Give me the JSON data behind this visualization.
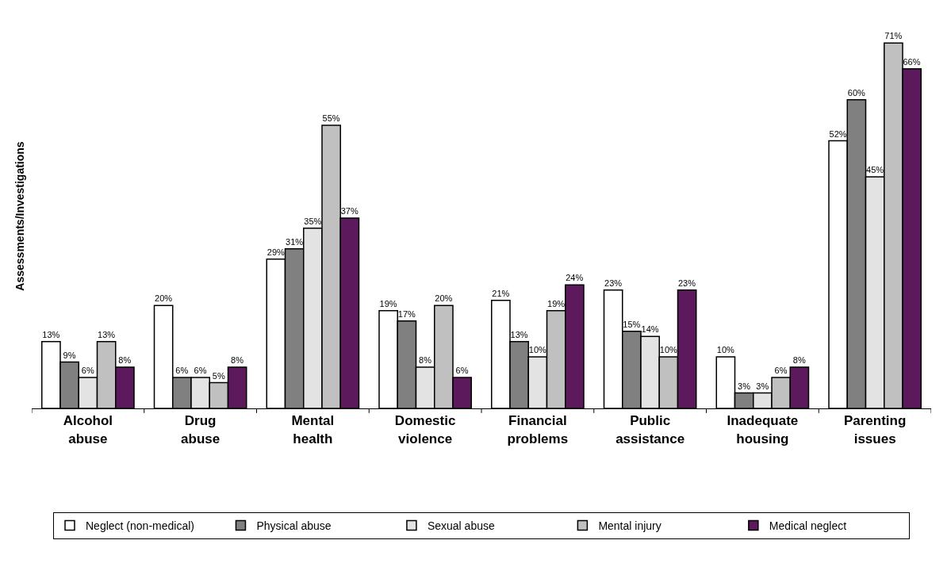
{
  "chart_data": {
    "type": "bar",
    "ylabel": "Assessments/Investigations",
    "categories": [
      "Alcohol abuse",
      "Drug abuse",
      "Mental health",
      "Domestic violence",
      "Financial problems",
      "Public assistance",
      "Inadequate housing",
      "Parenting issues"
    ],
    "series": [
      {
        "name": "Neglect (non-medical)",
        "color": "#ffffff",
        "values": [
          13,
          20,
          29,
          19,
          21,
          23,
          10,
          52
        ],
        "value_labels": [
          "13%",
          "20%",
          "29%",
          "19%",
          "21%",
          "23%",
          "10%",
          "52%"
        ]
      },
      {
        "name": "Physical abuse",
        "color": "#808080",
        "values": [
          9,
          6,
          31,
          17,
          13,
          15,
          3,
          60
        ],
        "value_labels": [
          "9%",
          "6%",
          "31%",
          "17%",
          "13%",
          "15%",
          "3%",
          "60%"
        ]
      },
      {
        "name": "Sexual abuse",
        "color": "#e3e3e3",
        "values": [
          6,
          6,
          35,
          8,
          10,
          14,
          3,
          45
        ],
        "value_labels": [
          "6%",
          "6%",
          "35%",
          "8%",
          "10%",
          "14%",
          "3%",
          "45%"
        ]
      },
      {
        "name": "Mental injury",
        "color": "#c0c0c0",
        "values": [
          13,
          5,
          55,
          20,
          19,
          10,
          6,
          71
        ],
        "value_labels": [
          "13%",
          "5%",
          "55%",
          "20%",
          "19%",
          "10%",
          "6%",
          "71%"
        ]
      },
      {
        "name": "Medical neglect",
        "color": "#5c1a5c",
        "values": [
          8,
          8,
          37,
          6,
          24,
          23,
          8,
          66
        ],
        "value_labels": [
          "8%",
          "8%",
          "37%",
          "6%",
          "24%",
          "23%",
          "8%",
          "66%"
        ]
      }
    ],
    "legend": "bottom"
  }
}
